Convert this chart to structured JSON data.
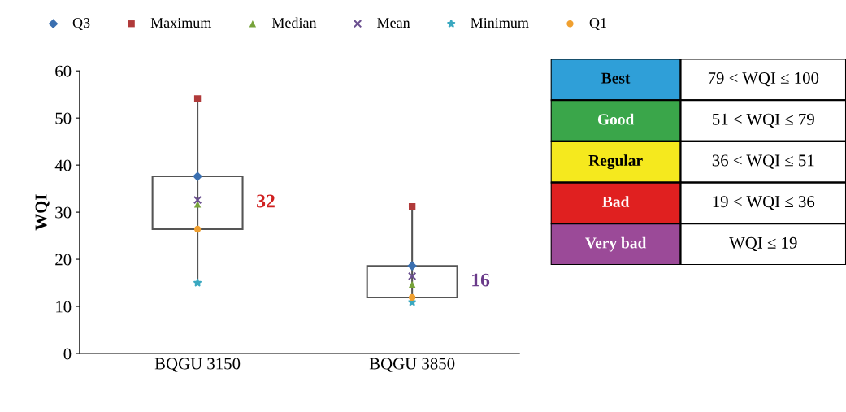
{
  "chart_data": [
    {
      "type": "box",
      "ylabel": "WQI",
      "categories": [
        "BQGU 3150",
        "BQGU 3850"
      ],
      "ylim": [
        0,
        60
      ],
      "yticks": [
        0,
        10,
        20,
        30,
        40,
        50,
        60
      ],
      "grid": false,
      "legend": "top",
      "boxes": [
        {
          "low": 15,
          "q1": 26.4,
          "q3": 37.6,
          "high": 54.1
        },
        {
          "low": 10.9,
          "q1": 11.9,
          "q3": 18.6,
          "high": 31.2
        }
      ],
      "series": [
        {
          "name": "Q3",
          "type": "scatter",
          "color": "#3a6fb0",
          "marker": "diamond",
          "values": [
            37.6,
            18.6
          ]
        },
        {
          "name": "Maximum",
          "type": "scatter",
          "color": "#b03a3a",
          "marker": "square",
          "values": [
            54.1,
            31.2
          ]
        },
        {
          "name": "Median",
          "type": "scatter",
          "color": "#77a33a",
          "marker": "triangle",
          "values": [
            31.7,
            14.7
          ]
        },
        {
          "name": "Mean",
          "type": "scatter",
          "color": "#6a4f8f",
          "marker": "cross",
          "values": [
            32.6,
            16.4
          ]
        },
        {
          "name": "Minimum",
          "type": "scatter",
          "color": "#3aa8c0",
          "marker": "star",
          "values": [
            15,
            10.9
          ]
        },
        {
          "name": "Q1",
          "type": "scatter",
          "color": "#f0a030",
          "marker": "circle",
          "values": [
            26.4,
            11.9
          ]
        }
      ],
      "annotations": [
        "32",
        "16"
      ]
    },
    {
      "type": "other",
      "categories": [
        "Best",
        "Good",
        "Regular",
        "Bad",
        "Very bad"
      ],
      "colors": [
        "#2f9fd8",
        "#3aa64a",
        "#f5e91e",
        "#e02020",
        "#9b4a98"
      ],
      "annotations": [
        "79 < WQI ≤ 100",
        "51 < WQI ≤ 79",
        "36 < WQI ≤ 51",
        "19 < WQI ≤ 36",
        "WQI ≤ 19"
      ]
    }
  ]
}
